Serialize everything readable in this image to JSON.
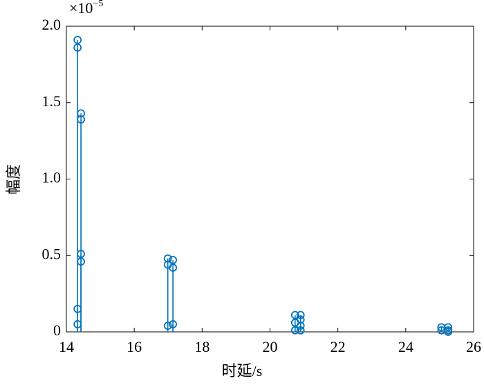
{
  "chart_data": {
    "type": "stem",
    "xlabel": "时延/s",
    "ylabel": "幅度",
    "y_multiplier": "×10",
    "y_exponent": "−5",
    "xlim": [
      14,
      26
    ],
    "xticks": [
      14,
      16,
      18,
      20,
      22,
      24,
      26
    ],
    "ylim": [
      0,
      2
    ],
    "yticks": [
      0,
      0.5,
      {
        "value": 1,
        "label": "1.0"
      },
      1.5,
      {
        "value": 2,
        "label": "2.0"
      }
    ],
    "color": "#0072bd",
    "x": [
      14.33,
      14.33,
      14.33,
      14.33,
      14.43,
      14.43,
      14.43,
      14.43,
      16.99,
      16.99,
      16.99,
      17.14,
      17.14,
      17.14,
      20.74,
      20.74,
      20.74,
      20.9,
      20.9,
      20.9,
      20.9,
      25.05,
      25.05,
      25.25,
      25.25,
      25.25
    ],
    "values": [
      1.91,
      1.86,
      0.15,
      0.05,
      1.43,
      1.39,
      0.51,
      0.46,
      0.48,
      0.44,
      0.04,
      0.47,
      0.42,
      0.05,
      0.11,
      0.06,
      0.01,
      0.11,
      0.08,
      0.04,
      0.01,
      0.03,
      0.01,
      0.03,
      0.01,
      0.0
    ]
  }
}
